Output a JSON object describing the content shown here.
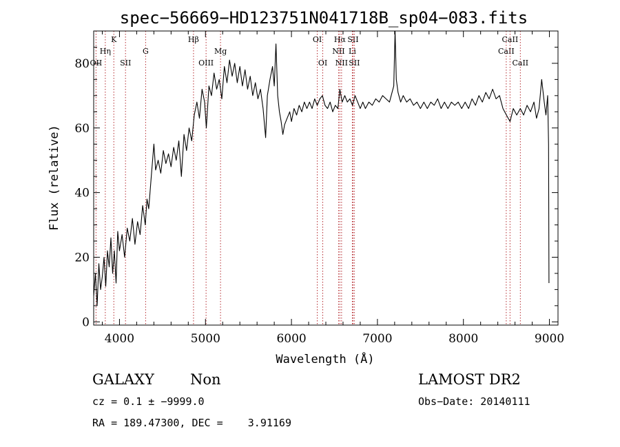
{
  "chart_data": {
    "type": "line",
    "title": "spec−56669−HD123751N041718B_sp04−083.fits",
    "xlabel": "Wavelength (Å)",
    "ylabel": "Flux (relative)",
    "xlim": [
      3700,
      9100
    ],
    "ylim": [
      -1,
      90
    ],
    "xticks": [
      4000,
      5000,
      6000,
      7000,
      8000,
      9000
    ],
    "yticks": [
      0,
      20,
      40,
      60,
      80
    ],
    "series": [
      {
        "points": [
          [
            3700,
            8
          ],
          [
            3720,
            15
          ],
          [
            3740,
            5
          ],
          [
            3760,
            18
          ],
          [
            3780,
            10
          ],
          [
            3800,
            14
          ],
          [
            3820,
            20
          ],
          [
            3840,
            11
          ],
          [
            3860,
            22
          ],
          [
            3880,
            17
          ],
          [
            3900,
            26
          ],
          [
            3920,
            15
          ],
          [
            3940,
            22
          ],
          [
            3960,
            12
          ],
          [
            3980,
            28
          ],
          [
            4000,
            22
          ],
          [
            4030,
            27
          ],
          [
            4060,
            20
          ],
          [
            4090,
            29
          ],
          [
            4120,
            25
          ],
          [
            4150,
            32
          ],
          [
            4180,
            24
          ],
          [
            4210,
            31
          ],
          [
            4240,
            27
          ],
          [
            4270,
            36
          ],
          [
            4300,
            30
          ],
          [
            4320,
            38
          ],
          [
            4340,
            35
          ],
          [
            4370,
            45
          ],
          [
            4400,
            55
          ],
          [
            4420,
            47
          ],
          [
            4450,
            50
          ],
          [
            4480,
            46
          ],
          [
            4510,
            53
          ],
          [
            4540,
            49
          ],
          [
            4570,
            52
          ],
          [
            4600,
            48
          ],
          [
            4630,
            54
          ],
          [
            4660,
            50
          ],
          [
            4690,
            56
          ],
          [
            4720,
            45
          ],
          [
            4750,
            58
          ],
          [
            4780,
            53
          ],
          [
            4810,
            60
          ],
          [
            4840,
            56
          ],
          [
            4870,
            64
          ],
          [
            4900,
            68
          ],
          [
            4930,
            63
          ],
          [
            4960,
            72
          ],
          [
            4990,
            68
          ],
          [
            5010,
            60
          ],
          [
            5040,
            73
          ],
          [
            5070,
            70
          ],
          [
            5100,
            77
          ],
          [
            5130,
            72
          ],
          [
            5160,
            75
          ],
          [
            5190,
            69
          ],
          [
            5220,
            79
          ],
          [
            5250,
            74
          ],
          [
            5280,
            81
          ],
          [
            5310,
            76
          ],
          [
            5340,
            80
          ],
          [
            5370,
            74
          ],
          [
            5400,
            79
          ],
          [
            5430,
            73
          ],
          [
            5460,
            78
          ],
          [
            5490,
            72
          ],
          [
            5520,
            76
          ],
          [
            5550,
            70
          ],
          [
            5580,
            74
          ],
          [
            5610,
            69
          ],
          [
            5640,
            72
          ],
          [
            5670,
            66
          ],
          [
            5700,
            57
          ],
          [
            5720,
            70
          ],
          [
            5750,
            75
          ],
          [
            5780,
            79
          ],
          [
            5800,
            73
          ],
          [
            5820,
            86
          ],
          [
            5840,
            70
          ],
          [
            5860,
            65
          ],
          [
            5880,
            62
          ],
          [
            5900,
            58
          ],
          [
            5920,
            61
          ],
          [
            5950,
            63
          ],
          [
            5980,
            65
          ],
          [
            6000,
            62
          ],
          [
            6030,
            66
          ],
          [
            6060,
            64
          ],
          [
            6090,
            67
          ],
          [
            6120,
            65
          ],
          [
            6150,
            68
          ],
          [
            6180,
            66
          ],
          [
            6210,
            68
          ],
          [
            6240,
            66
          ],
          [
            6270,
            69
          ],
          [
            6300,
            67
          ],
          [
            6330,
            69
          ],
          [
            6360,
            70
          ],
          [
            6390,
            67
          ],
          [
            6420,
            66
          ],
          [
            6450,
            68
          ],
          [
            6480,
            65
          ],
          [
            6510,
            67
          ],
          [
            6540,
            66
          ],
          [
            6563,
            72
          ],
          [
            6590,
            68
          ],
          [
            6620,
            70
          ],
          [
            6650,
            68
          ],
          [
            6680,
            69
          ],
          [
            6710,
            67
          ],
          [
            6740,
            70
          ],
          [
            6770,
            68
          ],
          [
            6800,
            66
          ],
          [
            6830,
            68
          ],
          [
            6860,
            66
          ],
          [
            6900,
            68
          ],
          [
            6940,
            67
          ],
          [
            6980,
            69
          ],
          [
            7020,
            68
          ],
          [
            7060,
            70
          ],
          [
            7100,
            69
          ],
          [
            7140,
            68
          ],
          [
            7170,
            71
          ],
          [
            7190,
            73
          ],
          [
            7205,
            90
          ],
          [
            7220,
            75
          ],
          [
            7240,
            71
          ],
          [
            7270,
            68
          ],
          [
            7300,
            70
          ],
          [
            7340,
            68
          ],
          [
            7380,
            69
          ],
          [
            7420,
            67
          ],
          [
            7460,
            68
          ],
          [
            7500,
            66
          ],
          [
            7540,
            68
          ],
          [
            7580,
            66
          ],
          [
            7620,
            68
          ],
          [
            7660,
            67
          ],
          [
            7700,
            69
          ],
          [
            7740,
            66
          ],
          [
            7780,
            68
          ],
          [
            7820,
            66
          ],
          [
            7860,
            68
          ],
          [
            7900,
            67
          ],
          [
            7940,
            68
          ],
          [
            7980,
            66
          ],
          [
            8020,
            68
          ],
          [
            8060,
            66
          ],
          [
            8100,
            69
          ],
          [
            8140,
            67
          ],
          [
            8180,
            70
          ],
          [
            8220,
            68
          ],
          [
            8260,
            71
          ],
          [
            8300,
            69
          ],
          [
            8340,
            72
          ],
          [
            8380,
            69
          ],
          [
            8420,
            70
          ],
          [
            8460,
            66
          ],
          [
            8500,
            64
          ],
          [
            8542,
            62
          ],
          [
            8580,
            66
          ],
          [
            8620,
            64
          ],
          [
            8662,
            66
          ],
          [
            8700,
            64
          ],
          [
            8740,
            67
          ],
          [
            8780,
            65
          ],
          [
            8820,
            68
          ],
          [
            8850,
            63
          ],
          [
            8880,
            66
          ],
          [
            8910,
            75
          ],
          [
            8940,
            68
          ],
          [
            8960,
            64
          ],
          [
            8980,
            70
          ],
          [
            8990,
            55
          ],
          [
            8995,
            12
          ]
        ]
      }
    ],
    "line_markers": [
      {
        "label": "OII",
        "x": 3727,
        "row": 3
      },
      {
        "label": "Hη",
        "x": 3835,
        "row": 2
      },
      {
        "label": "K",
        "x": 3934,
        "row": 1
      },
      {
        "label": "SII",
        "x": 4070,
        "row": 3
      },
      {
        "label": "G",
        "x": 4304,
        "row": 2
      },
      {
        "label": "Hβ",
        "x": 4861,
        "row": 1
      },
      {
        "label": "OIII",
        "x": 5007,
        "row": 3
      },
      {
        "label": "Mg",
        "x": 5175,
        "row": 2
      },
      {
        "label": "OI",
        "x": 6300,
        "row": 1
      },
      {
        "label": "OI",
        "x": 6364,
        "row": 3
      },
      {
        "label": "Hα",
        "x": 6563,
        "row": 1
      },
      {
        "label": "NII",
        "x": 6548,
        "row": 2
      },
      {
        "label": "NII",
        "x": 6583,
        "row": 3
      },
      {
        "label": "SII",
        "x": 6716,
        "row": 1
      },
      {
        "label": "Li",
        "x": 6708,
        "row": 2
      },
      {
        "label": "SII",
        "x": 6731,
        "row": 3
      },
      {
        "label": "CaII",
        "x": 8498,
        "row": 2
      },
      {
        "label": "CaII",
        "x": 8542,
        "row": 1
      },
      {
        "label": "CaII",
        "x": 8662,
        "row": 3
      }
    ],
    "grid": false,
    "legend": "none"
  },
  "info": {
    "class_label": "GALAXY",
    "subclass_label": "Non",
    "survey_label": "LAMOST DR2",
    "cz_text": "cz = 0.1 ± −9999.0",
    "obs_date_text": "Obs−Date: 20140111",
    "radec_text": "RA = 189.47300, DEC =    3.91169"
  }
}
